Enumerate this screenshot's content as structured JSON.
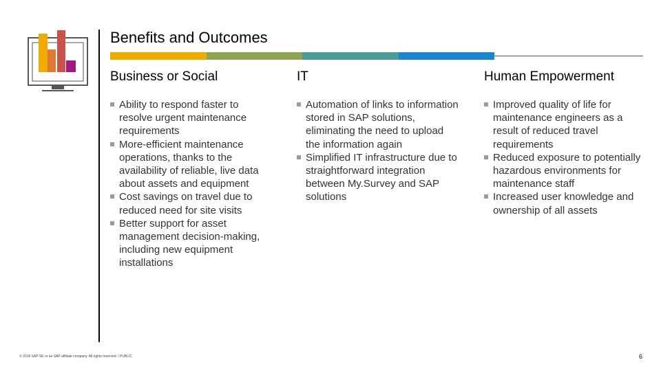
{
  "header": {
    "title": "Benefits and Outcomes",
    "bar_colors": [
      "#f0ab00",
      "#8ea454",
      "#4a9a9a",
      "#1a86cf"
    ]
  },
  "logo": {
    "icon": "monitor-bar-chart-icon",
    "colors": [
      "#f0ab00",
      "#e07a33",
      "#c9524b",
      "#a2197f"
    ]
  },
  "columns": [
    {
      "heading": "Business or Social",
      "items": [
        "Ability to respond faster to resolve urgent maintenance requirements",
        "More-efficient maintenance operations, thanks to the availability of reliable, live data about assets and equipment",
        "Cost savings on travel due to reduced need for site visits",
        "Better support for asset management decision-making, including new equipment installations"
      ]
    },
    {
      "heading": "IT",
      "items": [
        "Automation of links to information stored in SAP solutions, eliminating the need to upload the information again",
        "Simplified IT infrastructure due to straightforward integration between My.Survey and SAP solutions"
      ]
    },
    {
      "heading": "Human Empowerment",
      "items": [
        "Improved quality of life for maintenance engineers as a result of reduced travel requirements",
        "Reduced exposure to potentially hazardous environments for maintenance staff",
        "Increased user knowledge and ownership of all assets"
      ]
    }
  ],
  "footer": {
    "copyright": "© 2018 SAP SE or an SAP affiliate company. All rights reserved. ǀ PUBLIC",
    "page_number": "6"
  }
}
